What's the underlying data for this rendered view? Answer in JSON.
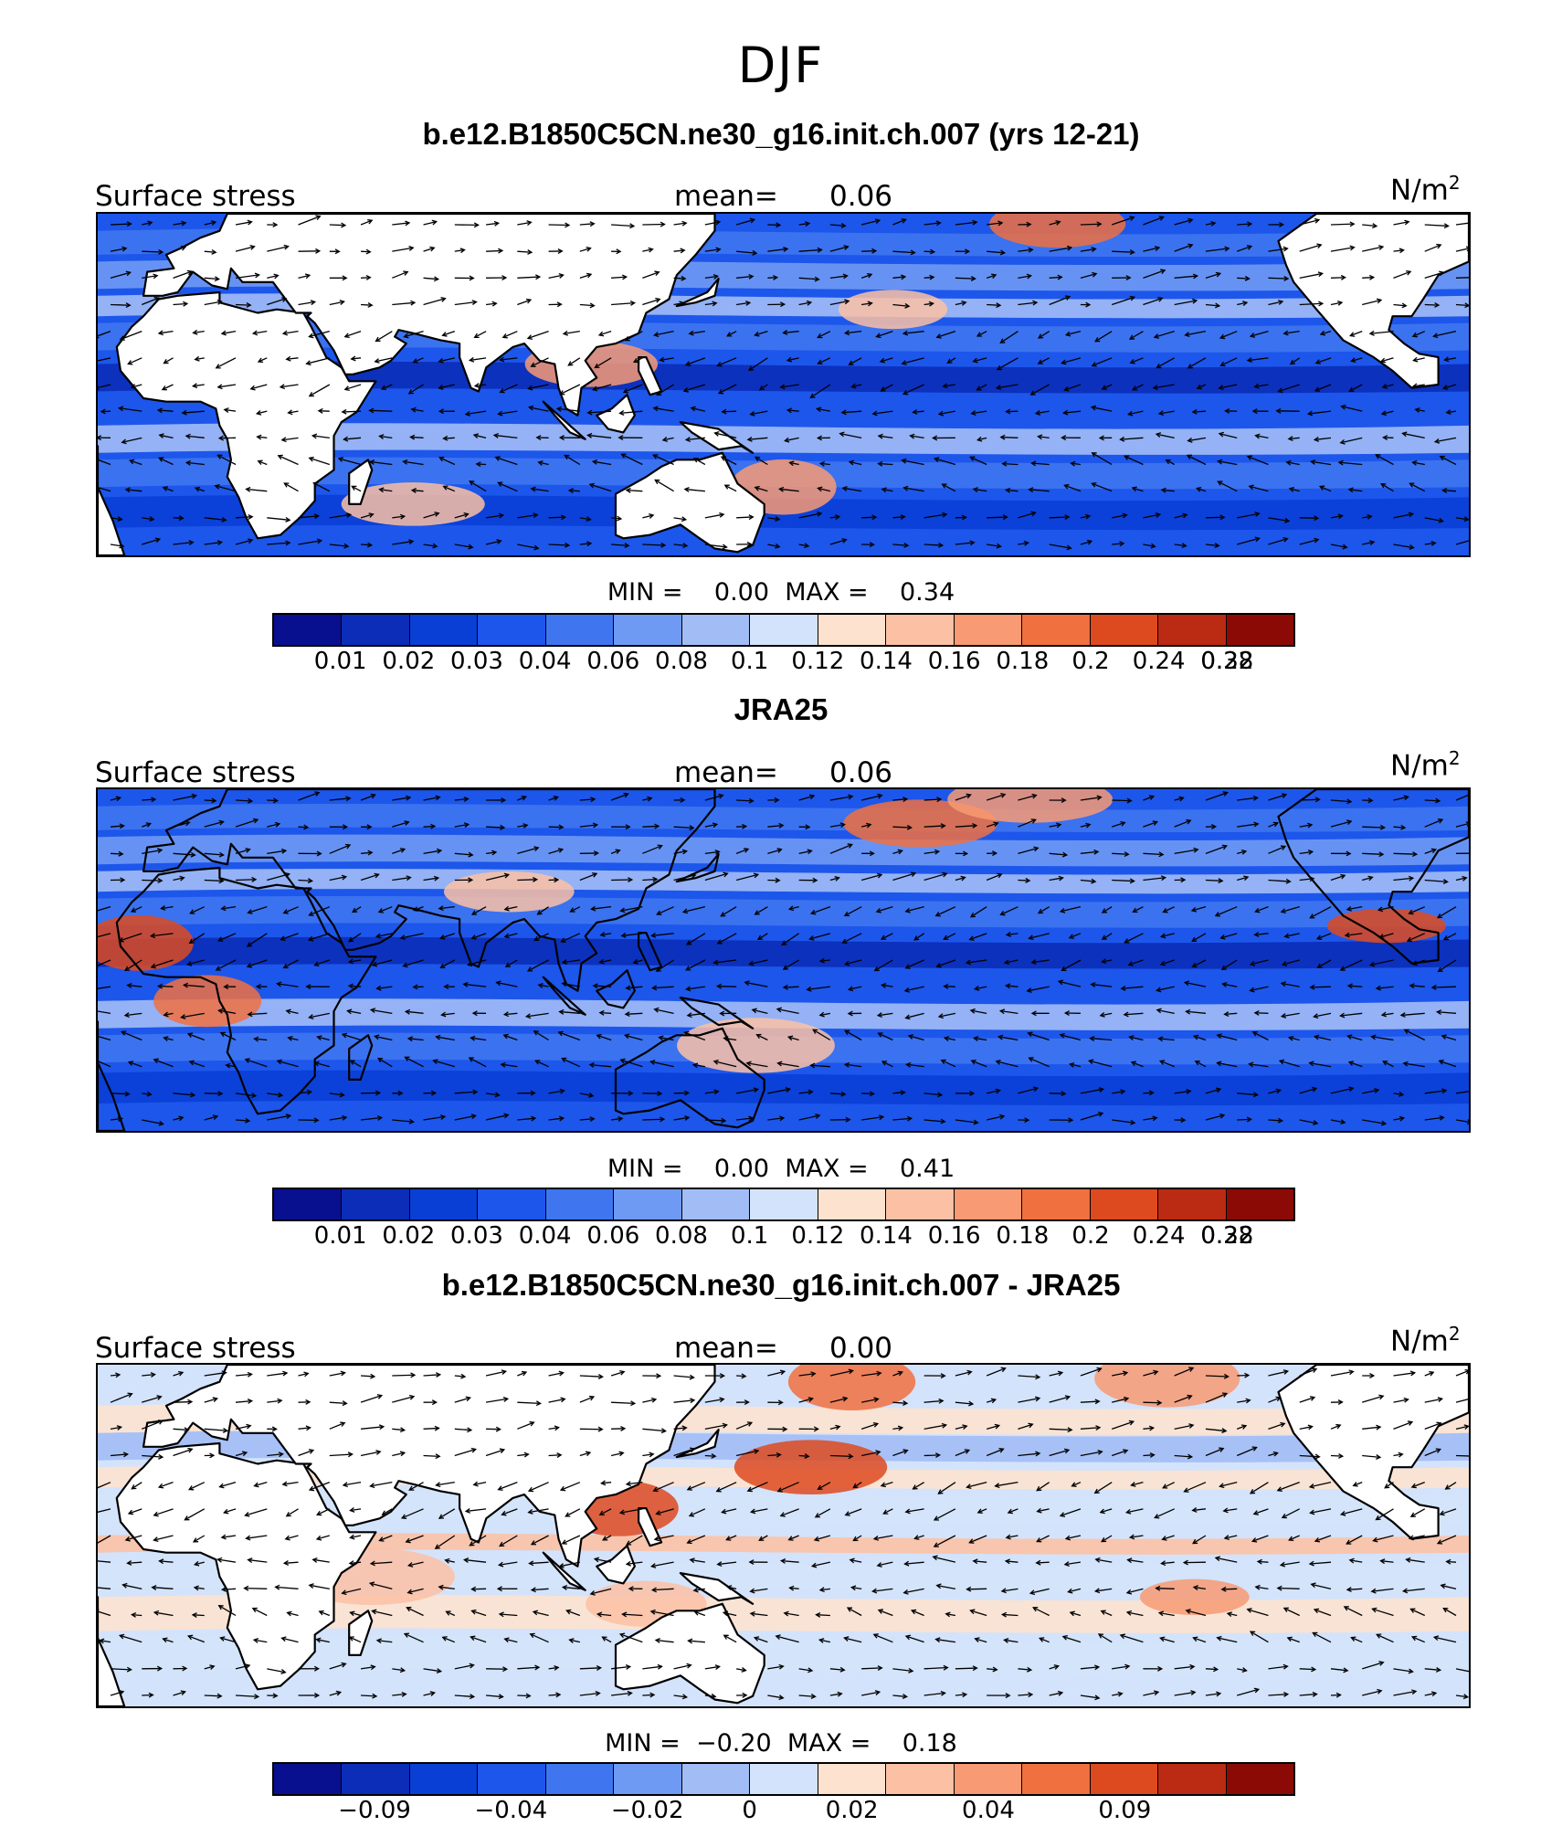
{
  "figure": {
    "season": "DJF"
  },
  "colors": {
    "levels15": [
      "#08108f",
      "#0b2db8",
      "#0a3fd6",
      "#1d56ea",
      "#3f76f0",
      "#6f9af4",
      "#a2bdf6",
      "#d3e3fb",
      "#fde2cf",
      "#fcc1a5",
      "#f89a73",
      "#f0703f",
      "#de4a1f",
      "#bb2a12",
      "#8b0a06"
    ],
    "land": "#ffffff",
    "coast": "#000000",
    "arrow": "#000000"
  },
  "panels": [
    {
      "title": "b.e12.B1850C5CN.ne30_g16.init.ch.007 (yrs 12-21)",
      "left_label": "Surface stress",
      "mean_label": "mean=",
      "mean_value": "0.06",
      "units": "N/m",
      "units_sup": "2",
      "min_label": "MIN =",
      "min_value": "0.00",
      "max_label": "MAX =",
      "max_value": "0.34",
      "colorbar_ticks": [
        "0.01",
        "0.02",
        "0.03",
        "0.04",
        "0.06",
        "0.08",
        "0.1",
        "0.12",
        "0.14",
        "0.16",
        "0.18",
        "0.2",
        "0.24",
        "0.28",
        "0.32"
      ]
    },
    {
      "title": "JRA25",
      "left_label": "Surface stress",
      "mean_label": "mean=",
      "mean_value": "0.06",
      "units": "N/m",
      "units_sup": "2",
      "min_label": "MIN =",
      "min_value": "0.00",
      "max_label": "MAX =",
      "max_value": "0.41",
      "colorbar_ticks": [
        "0.01",
        "0.02",
        "0.03",
        "0.04",
        "0.06",
        "0.08",
        "0.1",
        "0.12",
        "0.14",
        "0.16",
        "0.18",
        "0.2",
        "0.24",
        "0.28",
        "0.32"
      ]
    },
    {
      "title": "b.e12.B1850C5CN.ne30_g16.init.ch.007 - JRA25",
      "left_label": "Surface stress",
      "mean_label": "mean=",
      "mean_value": "0.00",
      "units": "N/m",
      "units_sup": "2",
      "min_label": "MIN =",
      "min_value": "−0.20",
      "max_label": "MAX =",
      "max_value": "0.18",
      "colorbar_ticks": [
        "−0.09",
        "−0.04",
        "−0.02",
        "0",
        "0.02",
        "0.04",
        "0.09"
      ]
    }
  ]
}
